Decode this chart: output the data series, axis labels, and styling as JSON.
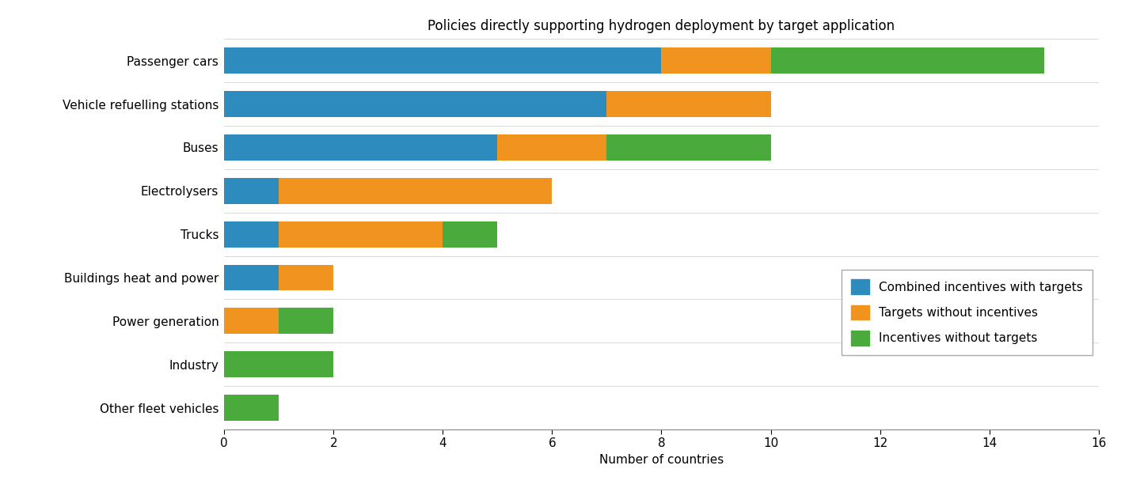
{
  "categories": [
    "Passenger cars",
    "Vehicle refuelling stations",
    "Buses",
    "Electrolysers",
    "Trucks",
    "Buildings heat and power",
    "Power generation",
    "Industry",
    "Other fleet vehicles"
  ],
  "combined_incentives": [
    8,
    7,
    5,
    1,
    1,
    1,
    0,
    0,
    0
  ],
  "targets_without": [
    2,
    3,
    2,
    5,
    3,
    1,
    1,
    0,
    0
  ],
  "incentives_without": [
    5,
    0,
    3,
    0,
    1,
    0,
    1,
    2,
    1
  ],
  "colors": {
    "combined_incentives": "#2e8bbd",
    "targets_without": "#f0941f",
    "incentives_without": "#4aaa3c"
  },
  "legend_labels": [
    "Combined incentives with targets",
    "Targets without incentives",
    "Incentives without targets"
  ],
  "title": "Policies directly supporting hydrogen deployment by target application",
  "xlabel": "Number of countries",
  "xlim": [
    0,
    16
  ],
  "xticks": [
    0,
    2,
    4,
    6,
    8,
    10,
    12,
    14,
    16
  ],
  "title_fontsize": 12,
  "label_fontsize": 11,
  "tick_fontsize": 11,
  "legend_fontsize": 11,
  "bar_height": 0.6
}
